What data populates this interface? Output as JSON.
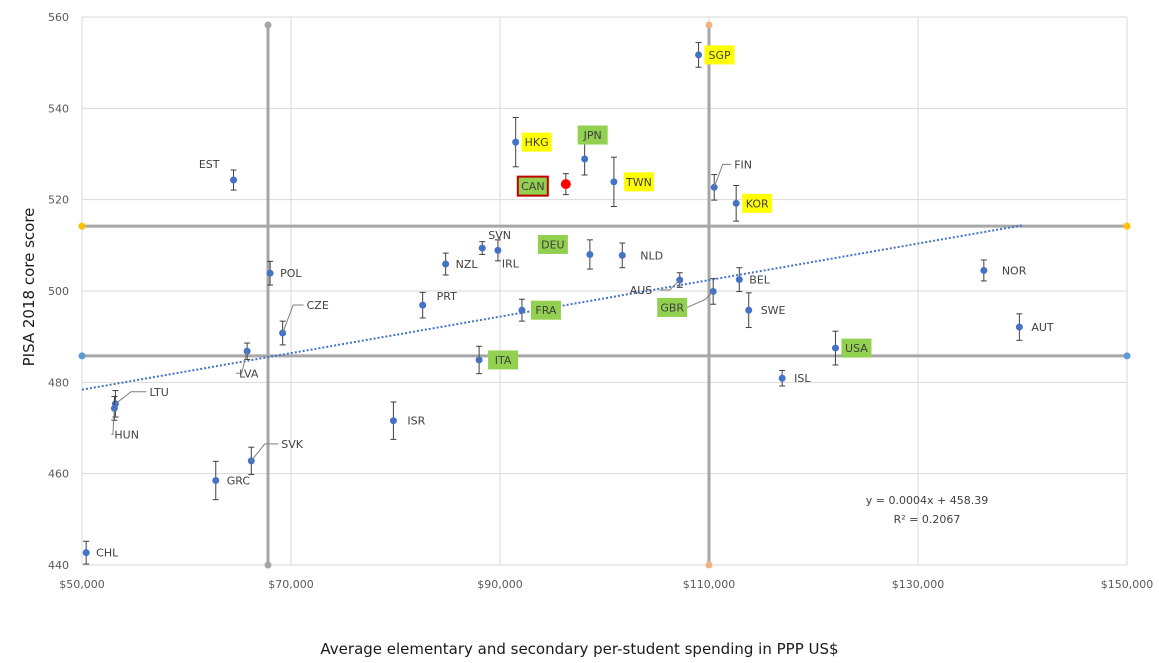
{
  "chart_data": {
    "type": "scatter",
    "xlabel": "Average elementary and secondary per-student spending in PPP US$",
    "ylabel": "PISA 2018 core score",
    "xlim": [
      50000,
      150000
    ],
    "ylim": [
      440,
      560
    ],
    "x_ticks": [
      "$50,000",
      "$70,000",
      "$90,000",
      "$110,000",
      "$130,000",
      "$150,000"
    ],
    "y_ticks": [
      "440",
      "460",
      "480",
      "500",
      "520",
      "540",
      "560"
    ],
    "grid": true,
    "trendline": {
      "style": "dotted",
      "slope": 0.0004,
      "intercept": 458.39,
      "equation": "y = 0.0004x + 458.39",
      "r_squared": "R² = 0.2067",
      "x_range": [
        50000,
        140000
      ]
    },
    "reference_lines": {
      "vertical": [
        67800,
        110000
      ],
      "horizontal": [
        514.2,
        485.8
      ]
    },
    "colors": {
      "point": "#4472c4",
      "highlight_point": "#ff0000",
      "yellow_label": "#ffff00",
      "green_label": "#92d050",
      "reference_line": "#a6a6a6",
      "trendline": "#4472c4"
    },
    "points": [
      {
        "label": "CHL",
        "x": 50400,
        "y": 442.7,
        "err": 2.5
      },
      {
        "label": "EST",
        "x": 64500,
        "y": 524.3,
        "err": 2.2
      },
      {
        "label": "POL",
        "x": 68000,
        "y": 503.9,
        "err": 2.6
      },
      {
        "label": "CZE",
        "x": 69200,
        "y": 490.8,
        "err": 2.6
      },
      {
        "label": "LVA",
        "x": 65800,
        "y": 486.8,
        "err": 1.8
      },
      {
        "label": "LTU",
        "x": 53200,
        "y": 475.3,
        "err": 2.9
      },
      {
        "label": "HUN",
        "x": 53100,
        "y": 474.3,
        "err": 2.6
      },
      {
        "label": "GRC",
        "x": 62800,
        "y": 458.5,
        "err": 4.2
      },
      {
        "label": "SVK",
        "x": 66200,
        "y": 462.8,
        "err": 3.0
      },
      {
        "label": "ISR",
        "x": 79800,
        "y": 471.6,
        "err": 4.1
      },
      {
        "label": "PRT",
        "x": 82600,
        "y": 496.9,
        "err": 2.8
      },
      {
        "label": "NZL",
        "x": 84800,
        "y": 505.9,
        "err": 2.4
      },
      {
        "label": "SVN",
        "x": 88300,
        "y": 509.4,
        "err": 1.4
      },
      {
        "label": "IRL",
        "x": 89800,
        "y": 508.9,
        "err": 2.3
      },
      {
        "label": "HKG",
        "x": 91500,
        "y": 532.6,
        "err": 5.4,
        "highlight": "yellow"
      },
      {
        "label": "JPN",
        "x": 98100,
        "y": 528.9,
        "err": 3.5,
        "highlight": "green"
      },
      {
        "label": "CAN",
        "x": 96300,
        "y": 523.4,
        "err": 2.3,
        "highlight": "green",
        "focus": true
      },
      {
        "label": "TWN",
        "x": 100900,
        "y": 523.9,
        "err": 5.4,
        "highlight": "yellow"
      },
      {
        "label": "DEU",
        "x": 98600,
        "y": 508.0,
        "err": 3.2,
        "highlight": "green"
      },
      {
        "label": "NLD",
        "x": 101700,
        "y": 507.8,
        "err": 2.7
      },
      {
        "label": "FRA",
        "x": 92100,
        "y": 495.8,
        "err": 2.4,
        "highlight": "green"
      },
      {
        "label": "ITA",
        "x": 88000,
        "y": 484.9,
        "err": 3.0,
        "highlight": "green"
      },
      {
        "label": "SGP",
        "x": 109000,
        "y": 551.7,
        "err": 2.7,
        "highlight": "yellow"
      },
      {
        "label": "FIN",
        "x": 110500,
        "y": 522.7,
        "err": 2.8
      },
      {
        "label": "KOR",
        "x": 112600,
        "y": 519.2,
        "err": 3.9,
        "highlight": "yellow"
      },
      {
        "label": "AUS",
        "x": 107200,
        "y": 502.4,
        "err": 1.6
      },
      {
        "label": "GBR",
        "x": 110400,
        "y": 499.9,
        "err": 2.8,
        "highlight": "green"
      },
      {
        "label": "BEL",
        "x": 112900,
        "y": 502.5,
        "err": 2.6
      },
      {
        "label": "SWE",
        "x": 113800,
        "y": 495.8,
        "err": 3.8
      },
      {
        "label": "USA",
        "x": 122100,
        "y": 487.5,
        "err": 3.7,
        "highlight": "green"
      },
      {
        "label": "ISL",
        "x": 117000,
        "y": 480.9,
        "err": 1.7
      },
      {
        "label": "NOR",
        "x": 136300,
        "y": 504.5,
        "err": 2.3
      },
      {
        "label": "AUT",
        "x": 139700,
        "y": 492.1,
        "err": 2.9
      }
    ]
  }
}
